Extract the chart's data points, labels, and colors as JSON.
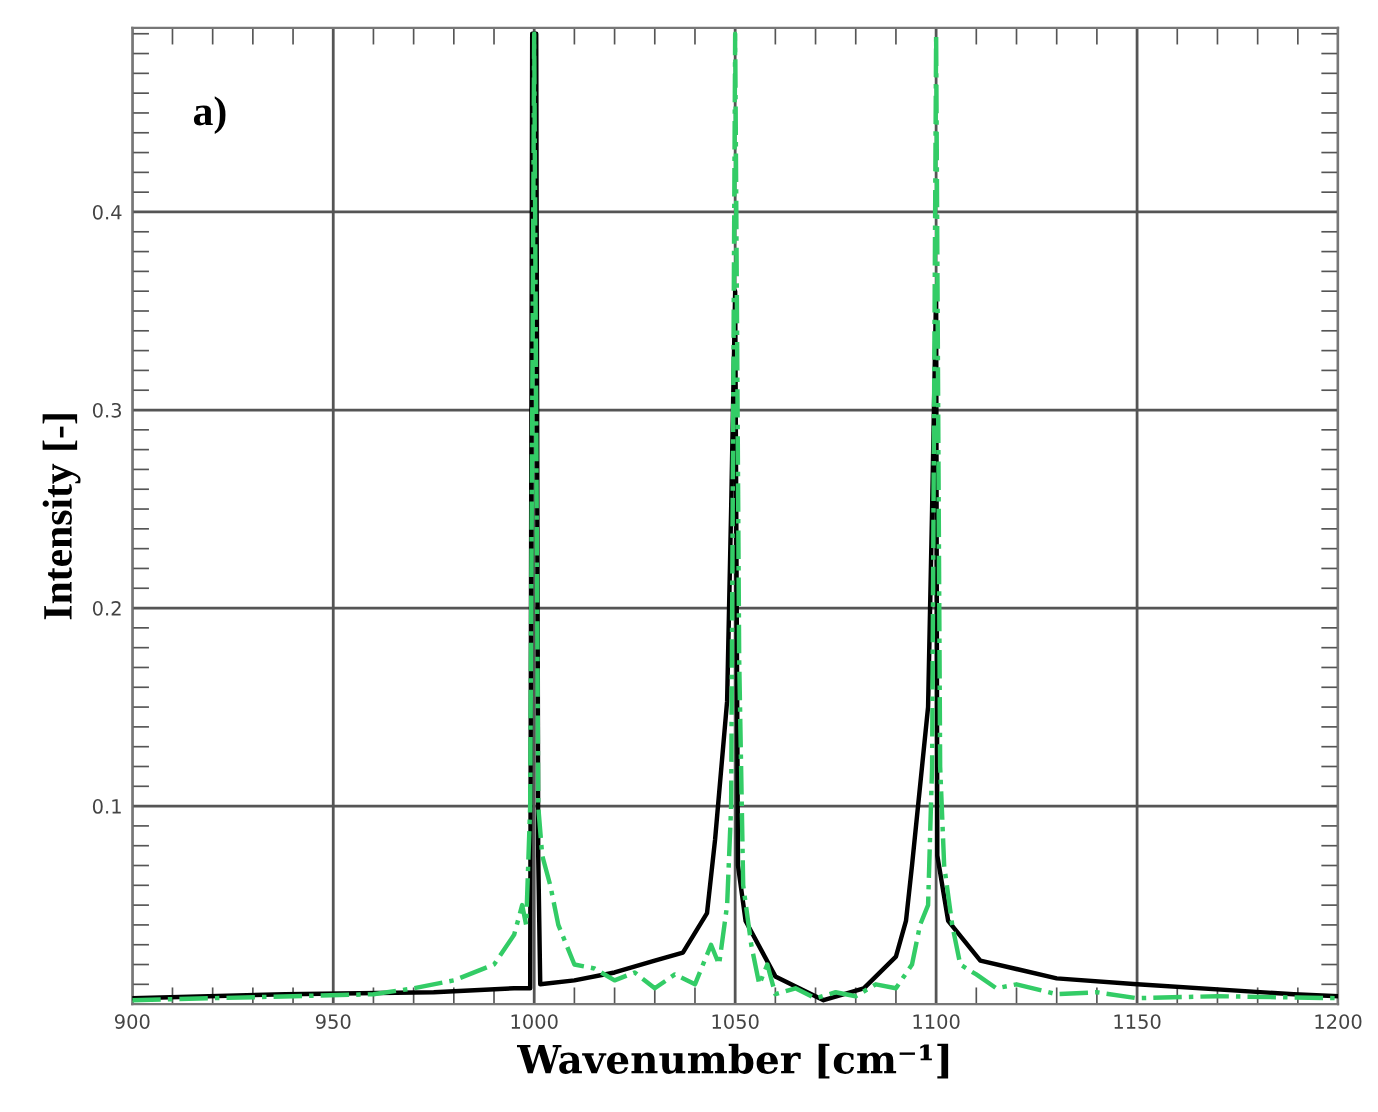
{
  "chart_data": {
    "type": "line",
    "xlabel": "Wavenumber [cm⁻¹]",
    "ylabel": "Intensity [-]",
    "annotations": [
      "a)"
    ],
    "xlim": [
      900,
      1200
    ],
    "xticks": [
      900,
      950,
      1000,
      1050,
      1100,
      1150,
      1200
    ],
    "ylim": [
      0,
      0.493
    ],
    "yticks": [
      0.1,
      0.2,
      0.3,
      0.4
    ],
    "grid": true,
    "series": [
      {
        "color": "#000000",
        "line_style": "solid",
        "x": [
          900,
          938,
          975,
          995,
          999,
          999.5,
          1000.5,
          1001,
          1001.5,
          1010,
          1020,
          1030,
          1037,
          1043,
          1045,
          1048,
          1049,
          1050,
          1050.7,
          1052.6,
          1060,
          1072,
          1082,
          1090,
          1092.5,
          1094,
          1098,
          1099,
          1100,
          1100.3,
          1103,
          1111,
          1130,
          1150,
          1189,
          1200
        ],
        "values": [
          0.003,
          0.005,
          0.006,
          0.008,
          0.008,
          0.49,
          0.49,
          0.075,
          0.01,
          0.012,
          0.016,
          0.022,
          0.026,
          0.046,
          0.083,
          0.153,
          0.25,
          0.36,
          0.07,
          0.042,
          0.014,
          0.002,
          0.008,
          0.024,
          0.042,
          0.07,
          0.15,
          0.25,
          0.36,
          0.075,
          0.042,
          0.022,
          0.013,
          0.01,
          0.005,
          0.004
        ]
      },
      {
        "color": "#33cc66",
        "line_style": "dashed",
        "x": [
          900,
          920,
          940,
          960,
          970,
          980,
          990,
          995,
          997,
          998,
          999,
          1000,
          1001,
          1002,
          1004,
          1006,
          1008,
          1010,
          1015,
          1020,
          1025,
          1030,
          1035,
          1040,
          1044,
          1046,
          1048,
          1049,
          1050,
          1051,
          1052,
          1054,
          1056,
          1058,
          1060,
          1065,
          1070,
          1075,
          1080,
          1085,
          1090,
          1094,
          1096,
          1098,
          1099,
          1100,
          1101,
          1102,
          1104,
          1106,
          1110,
          1115,
          1120,
          1130,
          1140,
          1150,
          1170,
          1200
        ],
        "values": [
          0.002,
          0.003,
          0.004,
          0.005,
          0.008,
          0.012,
          0.02,
          0.035,
          0.05,
          0.04,
          0.1,
          0.49,
          0.1,
          0.075,
          0.06,
          0.04,
          0.03,
          0.02,
          0.018,
          0.012,
          0.016,
          0.008,
          0.015,
          0.01,
          0.03,
          0.02,
          0.05,
          0.1,
          0.49,
          0.174,
          0.06,
          0.03,
          0.01,
          0.02,
          0.005,
          0.008,
          0.003,
          0.006,
          0.004,
          0.01,
          0.008,
          0.02,
          0.04,
          0.05,
          0.12,
          0.49,
          0.12,
          0.07,
          0.04,
          0.02,
          0.015,
          0.008,
          0.01,
          0.005,
          0.006,
          0.003,
          0.004,
          0.003
        ]
      }
    ]
  }
}
